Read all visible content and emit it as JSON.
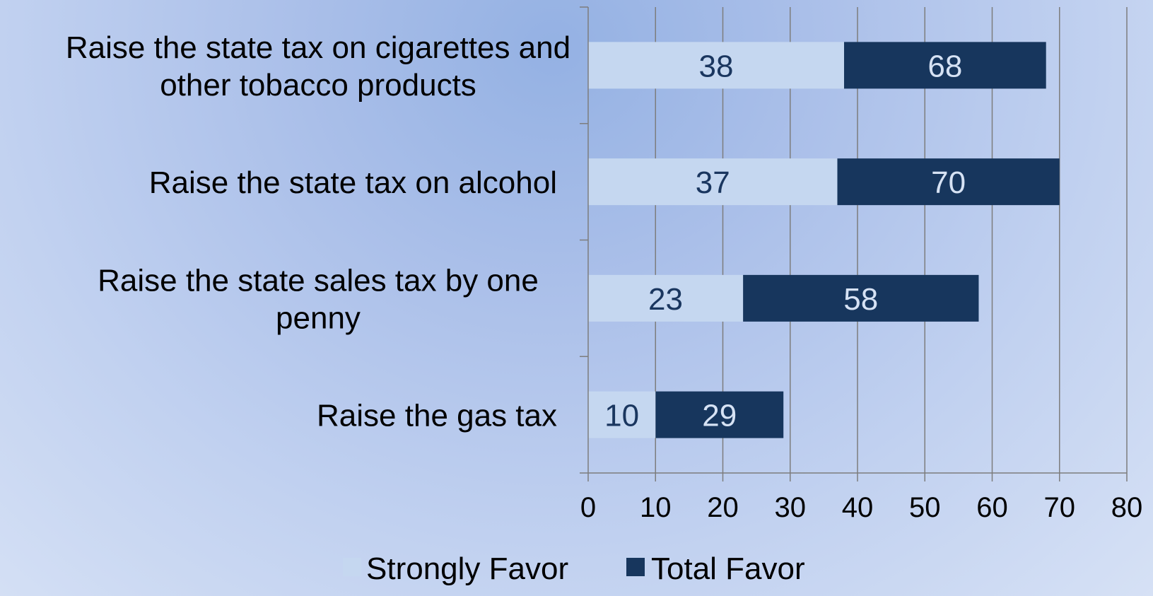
{
  "chart_data": {
    "type": "bar",
    "orientation": "horizontal",
    "categories": [
      [
        "Raise the state tax on cigarettes and",
        "other tobacco products"
      ],
      [
        "Raise the state tax on alcohol"
      ],
      [
        "Raise the state sales tax by one",
        "penny"
      ],
      [
        "Raise the gas tax"
      ]
    ],
    "series": [
      {
        "name": "Strongly Favor",
        "values": [
          38,
          37,
          23,
          10
        ],
        "color": "#c5d7f0",
        "label_color": "#1a365f"
      },
      {
        "name": "Total Favor",
        "values": [
          68,
          70,
          58,
          29
        ],
        "color": "#17365d",
        "label_color": "#d6e2f4"
      }
    ],
    "xlim": [
      0,
      80
    ],
    "xticks": [
      "0",
      "10",
      "20",
      "30",
      "40",
      "50",
      "60",
      "70",
      "80"
    ],
    "grid": true,
    "legend_position": "bottom",
    "title": "",
    "xlabel": "",
    "ylabel": ""
  }
}
